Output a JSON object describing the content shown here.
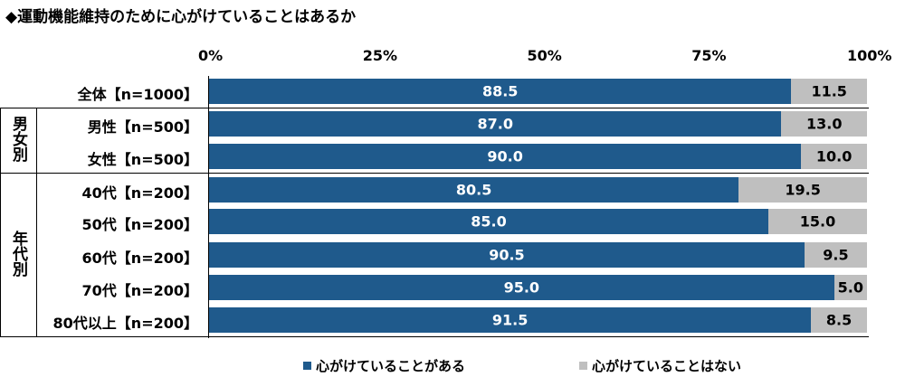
{
  "title": "◆運動機能維持のために心がけていることはあるか",
  "chart_data": {
    "type": "bar",
    "orientation": "horizontal-stacked-100",
    "xlim": [
      0,
      100
    ],
    "x_ticks": [
      "0%",
      "25%",
      "50%",
      "75%",
      "100%"
    ],
    "categories": [
      "全体【n=1000】",
      "男性【n=500】",
      "女性【n=500】",
      "40代【n=200】",
      "50代【n=200】",
      "60代【n=200】",
      "70代【n=200】",
      "80代以上【n=200】"
    ],
    "groups": [
      {
        "label": "男女別",
        "rows": [
          1,
          2
        ]
      },
      {
        "label": "年代別",
        "rows": [
          3,
          4,
          5,
          6,
          7
        ]
      }
    ],
    "series": [
      {
        "name": "心がけていることがある",
        "color": "#1f5a8c",
        "label_color": "#ffffff",
        "values": [
          88.5,
          87.0,
          90.0,
          80.5,
          85.0,
          90.5,
          95.0,
          91.5
        ]
      },
      {
        "name": "心がけていることはない",
        "color": "#bfbfbf",
        "label_color": "#000000",
        "values": [
          11.5,
          13.0,
          10.0,
          19.5,
          15.0,
          9.5,
          5.0,
          8.5
        ]
      }
    ],
    "legend": "bottom"
  }
}
